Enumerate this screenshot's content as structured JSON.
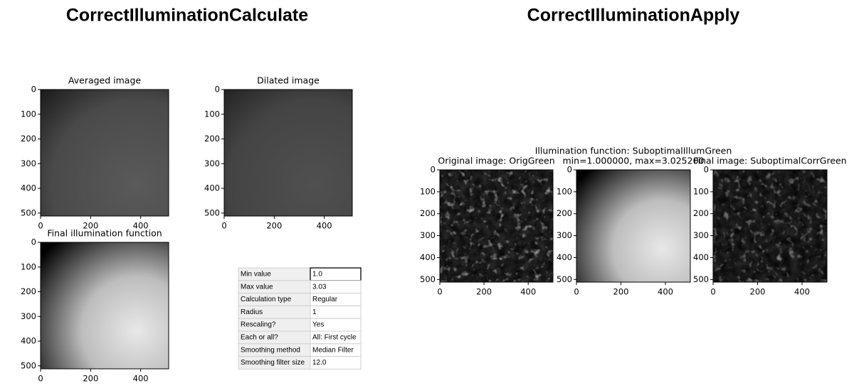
{
  "sections": [
    {
      "title": "CorrectIlluminationCalculate"
    },
    {
      "title": "CorrectIlluminationApply"
    }
  ],
  "panels": [
    {
      "title": "Averaged image",
      "xlim": [
        0,
        512
      ],
      "ylim": [
        0,
        512
      ],
      "xticks": [
        0,
        200,
        400
      ],
      "yticks": [
        0,
        100,
        200,
        300,
        400,
        500
      ]
    },
    {
      "title": "Dilated image",
      "xlim": [
        0,
        512
      ],
      "ylim": [
        0,
        512
      ],
      "xticks": [
        0,
        200,
        400
      ],
      "yticks": [
        0,
        100,
        200,
        300,
        400,
        500
      ]
    },
    {
      "title": "Final illumination function",
      "xlim": [
        0,
        512
      ],
      "ylim": [
        0,
        512
      ],
      "xticks": [
        0,
        200,
        400
      ],
      "yticks": [
        0,
        100,
        200,
        300,
        400,
        500
      ]
    },
    {
      "title": "Original image: OrigGreen",
      "xlim": [
        0,
        512
      ],
      "ylim": [
        0,
        512
      ],
      "xticks": [
        0,
        200,
        400
      ],
      "yticks": [
        0,
        100,
        200,
        300,
        400,
        500
      ]
    },
    {
      "title": "Illumination function: SuboptimalIllumGreen",
      "subtitle": "min=1.000000, max=3.025200",
      "xlim": [
        0,
        512
      ],
      "ylim": [
        0,
        512
      ],
      "xticks": [
        0,
        200,
        400
      ],
      "yticks": [
        0,
        100,
        200,
        300,
        400,
        500
      ]
    },
    {
      "title": "Final image: SuboptimalCorrGreen",
      "xlim": [
        0,
        512
      ],
      "ylim": [
        0,
        512
      ],
      "xticks": [
        0,
        200,
        400
      ],
      "yticks": [
        0,
        100,
        200,
        300,
        400,
        500
      ]
    }
  ],
  "table": {
    "rows": [
      [
        "Min value",
        "1.0"
      ],
      [
        "Max value",
        "3.03"
      ],
      [
        "Calculation type",
        "Regular"
      ],
      [
        "Radius",
        "1"
      ],
      [
        "Rescaling?",
        "Yes"
      ],
      [
        "Each or all?",
        "All: First cycle"
      ],
      [
        "Smoothing method",
        "Median Filter"
      ],
      [
        "Smoothing filter size",
        "12.0"
      ]
    ]
  }
}
